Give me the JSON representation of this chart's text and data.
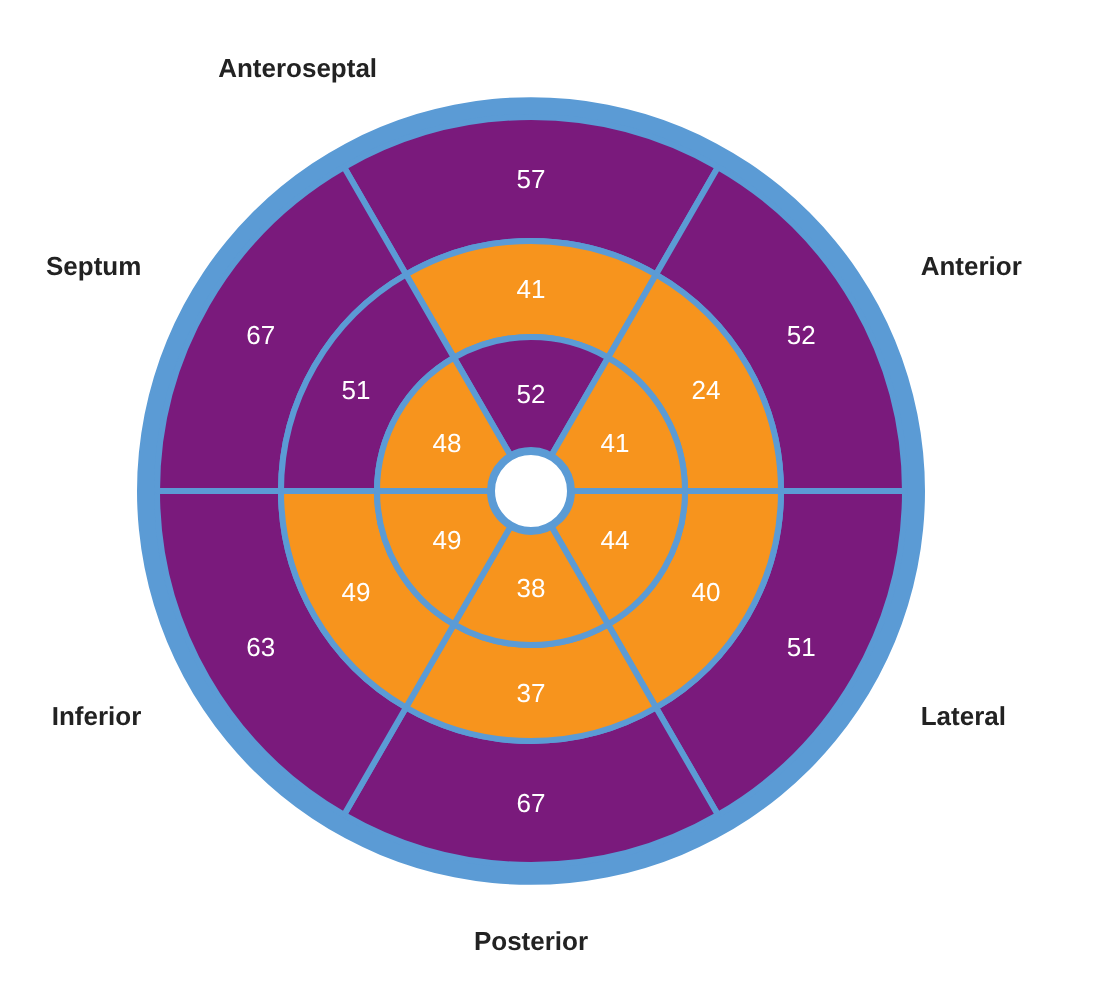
{
  "chart_data": {
    "type": "other",
    "categories": [
      "Anteroseptal",
      "Anterior",
      "Lateral",
      "Posterior",
      "Inferior",
      "Septum"
    ],
    "series": [
      {
        "values": [
          57,
          52,
          51,
          67,
          63,
          67
        ],
        "colors": [
          "#7a1a7c",
          "#7a1a7c",
          "#7a1a7c",
          "#7a1a7c",
          "#7a1a7c",
          "#7a1a7c"
        ]
      },
      {
        "values": [
          41,
          24,
          40,
          37,
          49,
          51
        ],
        "colors": [
          "#f7941d",
          "#f7941d",
          "#f7941d",
          "#f7941d",
          "#f7941d",
          "#7a1a7c"
        ]
      },
      {
        "values": [
          52,
          41,
          44,
          38,
          49,
          48
        ],
        "colors": [
          "#7a1a7c",
          "#f7941d",
          "#f7941d",
          "#f7941d",
          "#f7941d",
          "#f7941d"
        ]
      }
    ],
    "data_labels": true
  }
}
